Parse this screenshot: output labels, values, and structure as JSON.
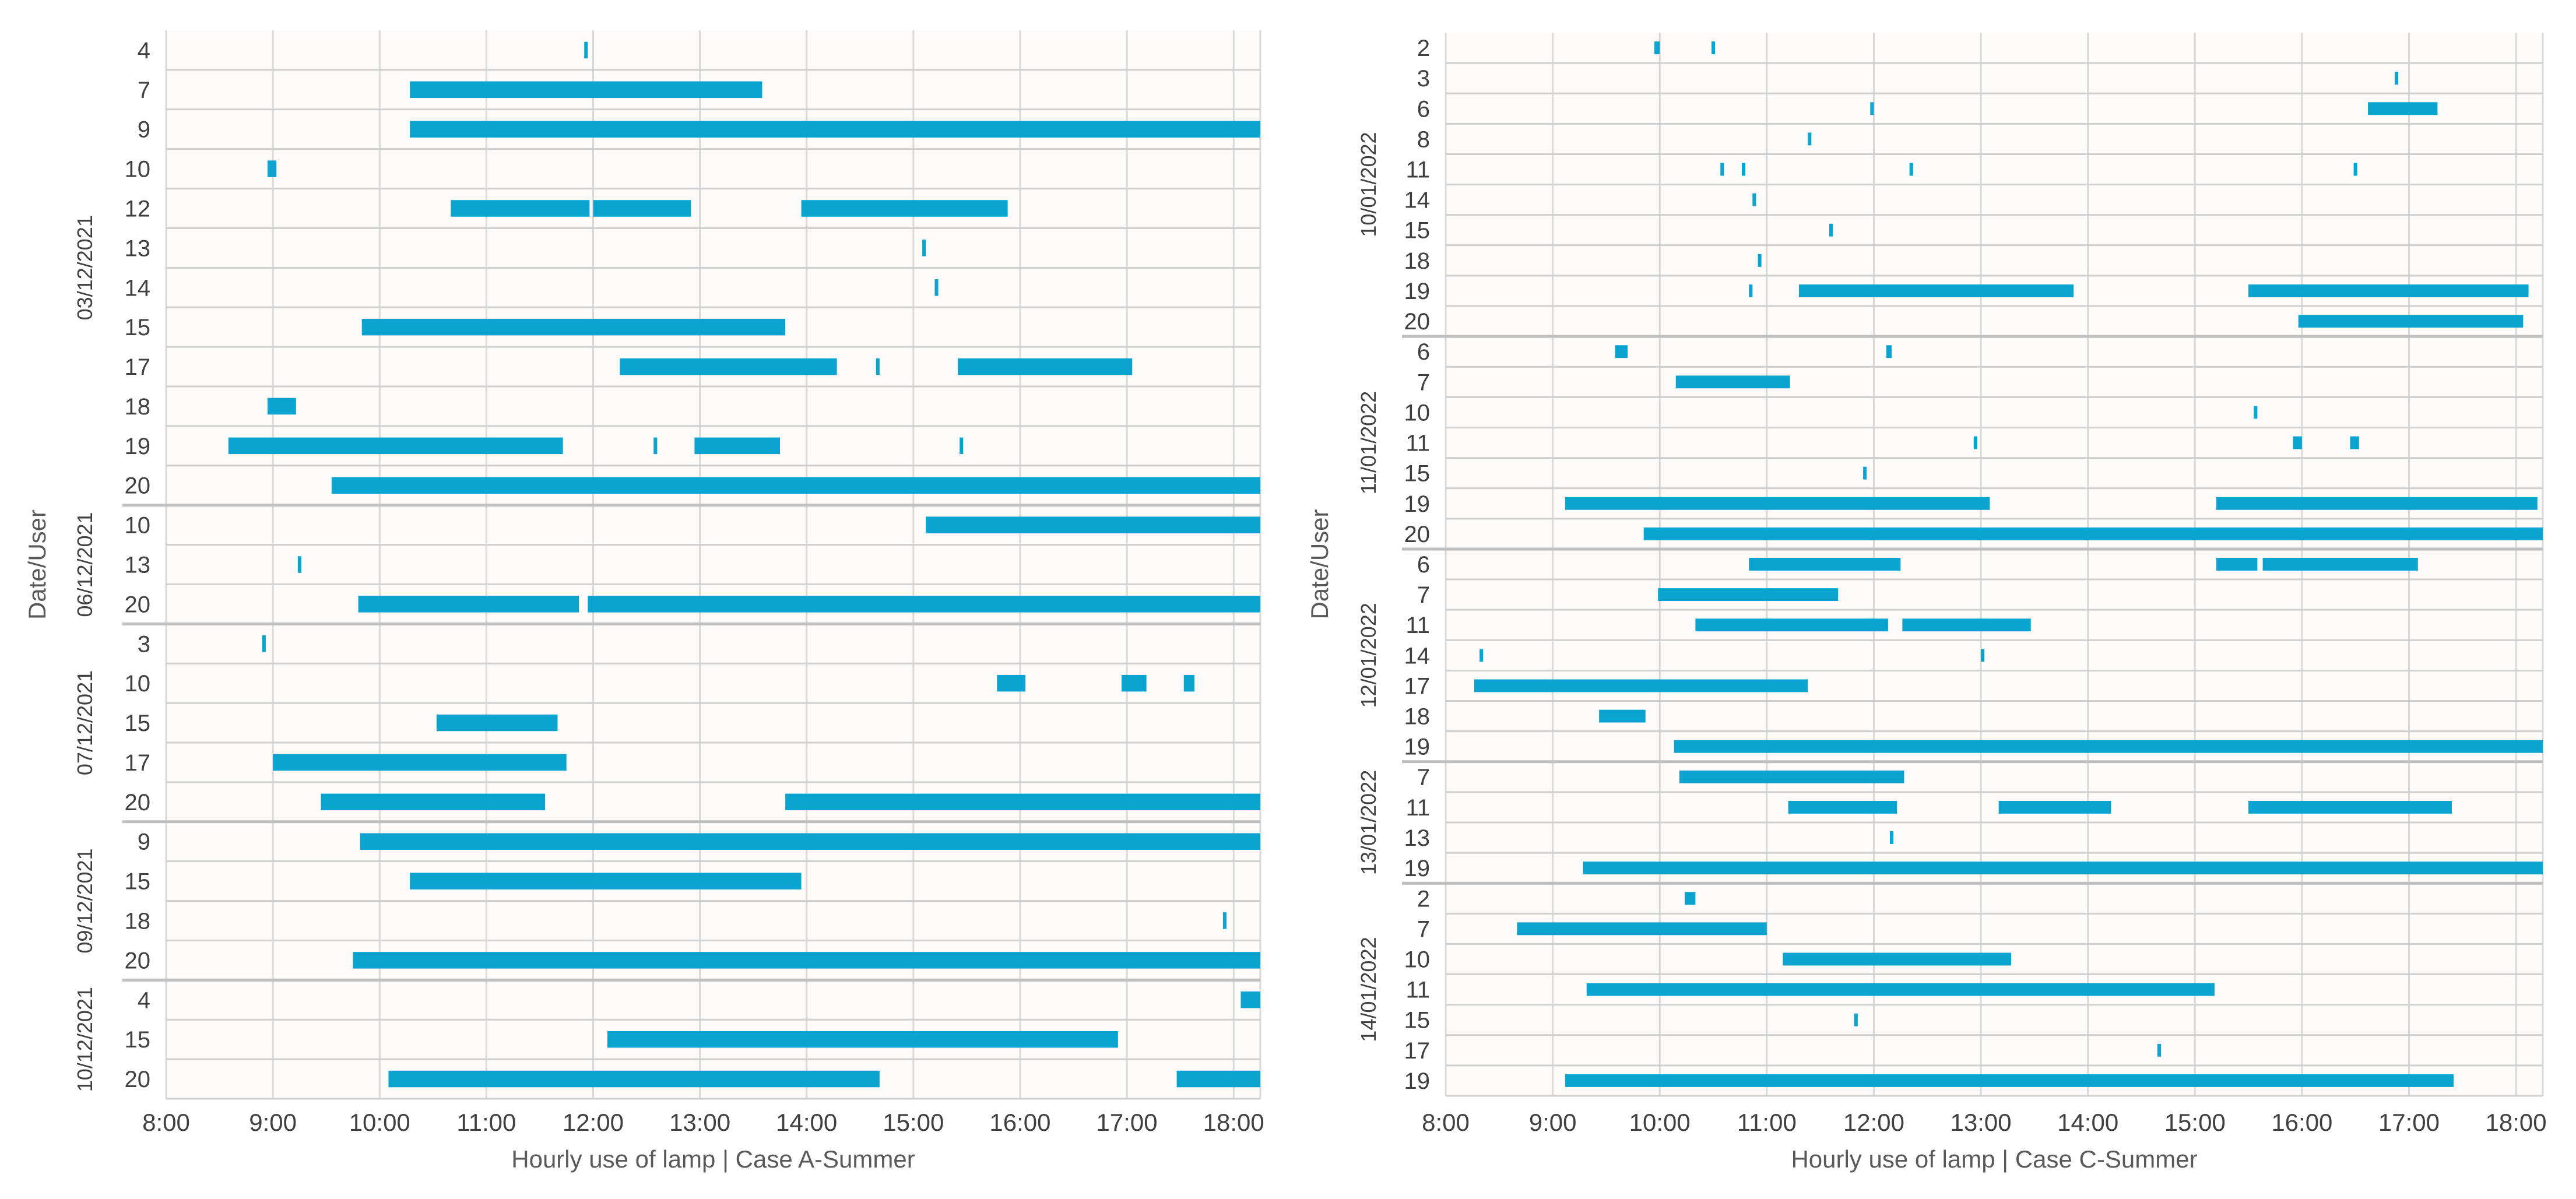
{
  "colors": {
    "bar": "#0ba3cf",
    "plot_bg": "#fcfbf9",
    "grid": "#d9d9d9",
    "row_line": "#cfcfcf",
    "group_line": "#bfbfbf",
    "text": "#404040"
  },
  "chart_data": [
    {
      "type": "bar",
      "orientation": "horizontal-range",
      "xlabel": "Hourly use of lamp | Case A-Summer",
      "ylabel": "Date/User",
      "xlim": [
        "8:00",
        "18:15"
      ],
      "x_ticks": [
        "8:00",
        "9:00",
        "10:00",
        "11:00",
        "12:00",
        "13:00",
        "14:00",
        "15:00",
        "16:00",
        "17:00",
        "18:00"
      ],
      "grid": true,
      "groups": [
        {
          "date": "03/12/2021",
          "rows": [
            {
              "user": "4",
              "intervals": [
                [
                  "11:55",
                  "11:57"
                ]
              ]
            },
            {
              "user": "7",
              "intervals": [
                [
                  "10:17",
                  "13:35"
                ]
              ]
            },
            {
              "user": "9",
              "intervals": [
                [
                  "10:17",
                  "18:15"
                ]
              ]
            },
            {
              "user": "10",
              "intervals": [
                [
                  "8:57",
                  "9:02"
                ]
              ]
            },
            {
              "user": "12",
              "intervals": [
                [
                  "10:40",
                  "11:58"
                ],
                [
                  "12:00",
                  "12:55"
                ],
                [
                  "13:57",
                  "15:53"
                ]
              ]
            },
            {
              "user": "13",
              "intervals": [
                [
                  "15:05",
                  "15:07"
                ]
              ]
            },
            {
              "user": "14",
              "intervals": [
                [
                  "15:12",
                  "15:14"
                ]
              ]
            },
            {
              "user": "15",
              "intervals": [
                [
                  "9:50",
                  "13:48"
                ]
              ]
            },
            {
              "user": "17",
              "intervals": [
                [
                  "12:15",
                  "14:17"
                ],
                [
                  "14:39",
                  "14:41"
                ],
                [
                  "15:25",
                  "17:03"
                ]
              ]
            },
            {
              "user": "18",
              "intervals": [
                [
                  "8:57",
                  "9:13"
                ]
              ]
            },
            {
              "user": "19",
              "intervals": [
                [
                  "8:35",
                  "11:43"
                ],
                [
                  "12:34",
                  "12:36"
                ],
                [
                  "12:57",
                  "13:45"
                ],
                [
                  "15:26",
                  "15:28"
                ]
              ]
            },
            {
              "user": "20",
              "intervals": [
                [
                  "9:33",
                  "18:15"
                ]
              ]
            }
          ]
        },
        {
          "date": "06/12/2021",
          "rows": [
            {
              "user": "10",
              "intervals": [
                [
                  "15:07",
                  "18:15"
                ]
              ]
            },
            {
              "user": "13",
              "intervals": [
                [
                  "9:14",
                  "9:16"
                ]
              ]
            },
            {
              "user": "20",
              "intervals": [
                [
                  "9:48",
                  "11:52"
                ],
                [
                  "11:57",
                  "18:15"
                ]
              ]
            }
          ]
        },
        {
          "date": "07/12/2021",
          "rows": [
            {
              "user": "3",
              "intervals": [
                [
                  "8:54",
                  "8:56"
                ]
              ]
            },
            {
              "user": "10",
              "intervals": [
                [
                  "15:47",
                  "16:03"
                ],
                [
                  "16:57",
                  "17:11"
                ],
                [
                  "17:32",
                  "17:38"
                ]
              ]
            },
            {
              "user": "15",
              "intervals": [
                [
                  "10:32",
                  "11:40"
                ]
              ]
            },
            {
              "user": "17",
              "intervals": [
                [
                  "9:00",
                  "11:45"
                ]
              ]
            },
            {
              "user": "20",
              "intervals": [
                [
                  "9:27",
                  "11:33"
                ],
                [
                  "13:48",
                  "18:15"
                ]
              ]
            }
          ]
        },
        {
          "date": "09/12/2021",
          "rows": [
            {
              "user": "9",
              "intervals": [
                [
                  "9:49",
                  "18:15"
                ]
              ]
            },
            {
              "user": "15",
              "intervals": [
                [
                  "10:17",
                  "13:57"
                ]
              ]
            },
            {
              "user": "18",
              "intervals": [
                [
                  "17:54",
                  "17:56"
                ]
              ]
            },
            {
              "user": "20",
              "intervals": [
                [
                  "9:45",
                  "18:15"
                ]
              ]
            }
          ]
        },
        {
          "date": "10/12/2021",
          "rows": [
            {
              "user": "4",
              "intervals": [
                [
                  "18:04",
                  "18:15"
                ]
              ]
            },
            {
              "user": "15",
              "intervals": [
                [
                  "12:08",
                  "16:55"
                ]
              ]
            },
            {
              "user": "20",
              "intervals": [
                [
                  "10:05",
                  "14:41"
                ],
                [
                  "17:28",
                  "18:15"
                ]
              ]
            }
          ]
        }
      ]
    },
    {
      "type": "bar",
      "orientation": "horizontal-range",
      "xlabel": "Hourly use of lamp | Case C-Summer",
      "ylabel": "Date/User",
      "xlim": [
        "8:00",
        "18:15"
      ],
      "x_ticks": [
        "8:00",
        "9:00",
        "10:00",
        "11:00",
        "12:00",
        "13:00",
        "14:00",
        "15:00",
        "16:00",
        "17:00",
        "18:00"
      ],
      "grid": true,
      "groups": [
        {
          "date": "10/01/2022",
          "rows": [
            {
              "user": "2",
              "intervals": [
                [
                  "9:57",
                  "10:00"
                ],
                [
                  "10:29",
                  "10:31"
                ]
              ]
            },
            {
              "user": "3",
              "intervals": [
                [
                  "16:52",
                  "16:54"
                ]
              ]
            },
            {
              "user": "6",
              "intervals": [
                [
                  "11:58",
                  "12:00"
                ],
                [
                  "16:37",
                  "17:16"
                ]
              ]
            },
            {
              "user": "8",
              "intervals": [
                [
                  "11:23",
                  "11:25"
                ]
              ]
            },
            {
              "user": "11",
              "intervals": [
                [
                  "10:34",
                  "10:36"
                ],
                [
                  "10:46",
                  "10:48"
                ],
                [
                  "12:20",
                  "12:22"
                ],
                [
                  "16:29",
                  "16:31"
                ]
              ]
            },
            {
              "user": "14",
              "intervals": [
                [
                  "10:52",
                  "10:54"
                ]
              ]
            },
            {
              "user": "15",
              "intervals": [
                [
                  "11:35",
                  "11:37"
                ]
              ]
            },
            {
              "user": "18",
              "intervals": [
                [
                  "10:55",
                  "10:57"
                ]
              ]
            },
            {
              "user": "19",
              "intervals": [
                [
                  "10:50",
                  "10:52"
                ],
                [
                  "11:18",
                  "13:52"
                ],
                [
                  "15:30",
                  "18:07"
                ]
              ]
            },
            {
              "user": "20",
              "intervals": [
                [
                  "15:58",
                  "18:04"
                ]
              ]
            }
          ]
        },
        {
          "date": "11/01/2022",
          "rows": [
            {
              "user": "6",
              "intervals": [
                [
                  "9:35",
                  "9:42"
                ],
                [
                  "12:07",
                  "12:10"
                ]
              ]
            },
            {
              "user": "7",
              "intervals": [
                [
                  "10:09",
                  "11:13"
                ]
              ]
            },
            {
              "user": "10",
              "intervals": [
                [
                  "15:33",
                  "15:35"
                ]
              ]
            },
            {
              "user": "11",
              "intervals": [
                [
                  "12:56",
                  "12:58"
                ],
                [
                  "15:55",
                  "16:00"
                ],
                [
                  "16:27",
                  "16:32"
                ]
              ]
            },
            {
              "user": "15",
              "intervals": [
                [
                  "11:54",
                  "11:56"
                ]
              ]
            },
            {
              "user": "19",
              "intervals": [
                [
                  "9:07",
                  "13:05"
                ],
                [
                  "15:12",
                  "18:12"
                ]
              ]
            },
            {
              "user": "20",
              "intervals": [
                [
                  "9:51",
                  "18:15"
                ]
              ]
            }
          ]
        },
        {
          "date": "12/01/2022",
          "rows": [
            {
              "user": "6",
              "intervals": [
                [
                  "10:50",
                  "12:15"
                ],
                [
                  "15:12",
                  "15:35"
                ],
                [
                  "15:38",
                  "17:05"
                ]
              ]
            },
            {
              "user": "7",
              "intervals": [
                [
                  "9:59",
                  "11:40"
                ]
              ]
            },
            {
              "user": "11",
              "intervals": [
                [
                  "10:20",
                  "12:08"
                ],
                [
                  "12:16",
                  "13:28"
                ]
              ]
            },
            {
              "user": "14",
              "intervals": [
                [
                  "8:19",
                  "8:21"
                ],
                [
                  "13:00",
                  "13:02"
                ]
              ]
            },
            {
              "user": "17",
              "intervals": [
                [
                  "8:16",
                  "11:23"
                ]
              ]
            },
            {
              "user": "18",
              "intervals": [
                [
                  "9:26",
                  "9:52"
                ]
              ]
            },
            {
              "user": "19",
              "intervals": [
                [
                  "10:08",
                  "18:15"
                ]
              ]
            }
          ]
        },
        {
          "date": "13/01/2022",
          "rows": [
            {
              "user": "7",
              "intervals": [
                [
                  "10:11",
                  "12:17"
                ]
              ]
            },
            {
              "user": "11",
              "intervals": [
                [
                  "11:12",
                  "12:13"
                ],
                [
                  "13:10",
                  "14:13"
                ],
                [
                  "15:30",
                  "17:24"
                ]
              ]
            },
            {
              "user": "13",
              "intervals": [
                [
                  "12:09",
                  "12:11"
                ]
              ]
            },
            {
              "user": "19",
              "intervals": [
                [
                  "9:17",
                  "18:15"
                ]
              ]
            }
          ]
        },
        {
          "date": "14/01/2022",
          "rows": [
            {
              "user": "2",
              "intervals": [
                [
                  "10:14",
                  "10:20"
                ]
              ]
            },
            {
              "user": "7",
              "intervals": [
                [
                  "8:40",
                  "11:00"
                ]
              ]
            },
            {
              "user": "10",
              "intervals": [
                [
                  "11:09",
                  "13:17"
                ]
              ]
            },
            {
              "user": "11",
              "intervals": [
                [
                  "9:19",
                  "15:11"
                ]
              ]
            },
            {
              "user": "15",
              "intervals": [
                [
                  "11:49",
                  "11:51"
                ]
              ]
            },
            {
              "user": "17",
              "intervals": [
                [
                  "14:39",
                  "14:41"
                ]
              ]
            },
            {
              "user": "19",
              "intervals": [
                [
                  "9:07",
                  "17:25"
                ]
              ]
            }
          ]
        }
      ]
    }
  ]
}
